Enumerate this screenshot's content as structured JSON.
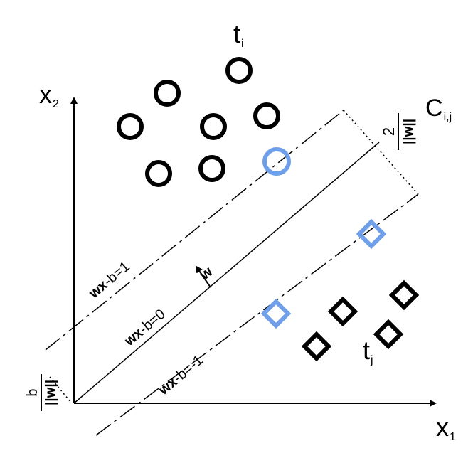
{
  "diagram": {
    "x1_label": "x",
    "x1_sub": "1",
    "x2_label": "x",
    "x2_sub": "2",
    "class_i_label": "t",
    "class_i_sub": "i",
    "class_j_label": "t",
    "class_j_sub": "j",
    "margin_name": "C",
    "margin_sub": "i,j",
    "margin_num": "2",
    "margin_den": "||w||",
    "offset_num": "b",
    "offset_den": "||w||",
    "w_label": "w",
    "line_upper": {
      "bold": "wx",
      "rest": "-b=1"
    },
    "line_middle": {
      "bold": "wx",
      "rest": "-b=0"
    },
    "line_lower": {
      "bold": "wx",
      "rest": "-b=-1"
    },
    "colors": {
      "ink": "#000000",
      "support_vector": "#6f9fe8"
    }
  }
}
